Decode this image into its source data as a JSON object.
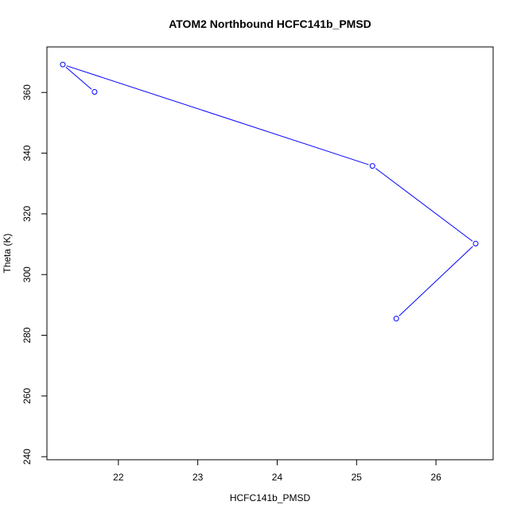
{
  "chart_data": {
    "type": "line",
    "title": "ATOM2 Northbound HCFC141b_PMSD",
    "xlabel": "HCFC141b_PMSD",
    "ylabel": "Theta (K)",
    "xlim": [
      21.1,
      26.72
    ],
    "ylim": [
      239,
      375
    ],
    "x_ticks": [
      22,
      23,
      24,
      25,
      26
    ],
    "y_ticks": [
      240,
      260,
      280,
      300,
      320,
      340,
      360
    ],
    "grid": false,
    "legend": "none",
    "series": [
      {
        "color": "#0000ff",
        "marker": "open-circle",
        "points": [
          {
            "x": 25.5,
            "y": 285.5
          },
          {
            "x": 26.5,
            "y": 310.2
          },
          {
            "x": 25.2,
            "y": 335.8
          },
          {
            "x": 21.3,
            "y": 369.2
          },
          {
            "x": 21.7,
            "y": 360.2
          }
        ]
      }
    ]
  }
}
